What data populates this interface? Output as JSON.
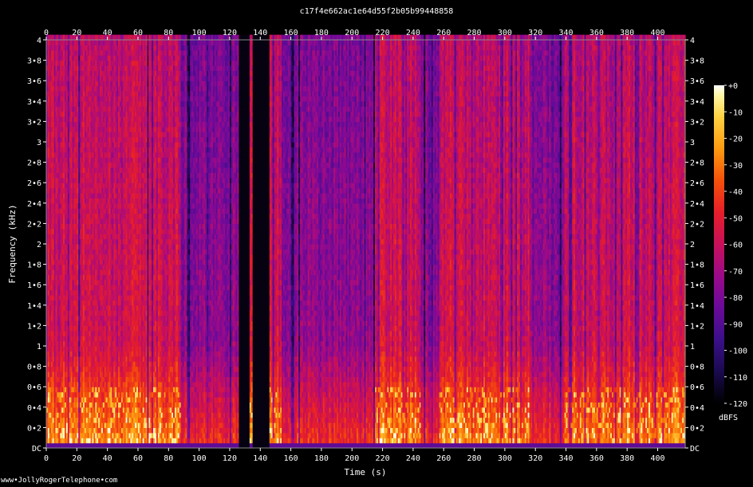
{
  "title": "c17f4e662ac1e64d55f2b05b99448858",
  "footer": "www•JollyRogerTelephone•com",
  "chart_data": {
    "type": "heatmap",
    "subtype": "spectrogram",
    "xlabel": "Time (s)",
    "ylabel": "Frequency (kHz)",
    "xlim": [
      0,
      418
    ],
    "ylim": [
      0,
      4
    ],
    "x_ticks": [
      0,
      20,
      40,
      60,
      80,
      100,
      120,
      140,
      160,
      180,
      200,
      220,
      240,
      260,
      280,
      300,
      320,
      340,
      360,
      380,
      400
    ],
    "x_tick_labels": [
      "0",
      "20",
      "40",
      "60",
      "80",
      "100",
      "120",
      "140",
      "160",
      "180",
      "200",
      "220",
      "240",
      "260",
      "280",
      "300",
      "320",
      "340",
      "360",
      "380",
      "400"
    ],
    "y_ticks": [
      0,
      0.2,
      0.4,
      0.6,
      0.8,
      1,
      1.2,
      1.4,
      1.6,
      1.8,
      2,
      2.2,
      2.4,
      2.6,
      2.8,
      3,
      3.2,
      3.4,
      3.6,
      3.8,
      4
    ],
    "y_tick_labels": [
      "DC",
      "0•2",
      "0•4",
      "0•6",
      "0•8",
      "1",
      "1•2",
      "1•4",
      "1•6",
      "1•8",
      "2",
      "2•2",
      "2•4",
      "2•6",
      "2•8",
      "3",
      "3•2",
      "3•4",
      "3•6",
      "3•8",
      "4"
    ],
    "colorbar": {
      "label": "dBFS",
      "range": [
        -120,
        0
      ],
      "tick_labels": [
        "+0",
        "-10",
        "-20",
        "-30",
        "-40",
        "-50",
        "-60",
        "-70",
        "-80",
        "-90",
        "-100",
        "-110",
        "-120"
      ],
      "colormap": [
        "#000000",
        "#1a0a4f",
        "#3b0f8a",
        "#6a0a9a",
        "#9a0a8a",
        "#c8105a",
        "#e61e2a",
        "#f5500a",
        "#fd9a10",
        "#ffd040",
        "#fff8a8",
        "#ffffff"
      ]
    },
    "silent_segments": [
      [
        126,
        132
      ],
      [
        135,
        145
      ]
    ],
    "quiet_segments": [
      [
        88,
        126
      ],
      [
        154,
        214
      ],
      [
        245,
        256
      ],
      [
        316,
        338
      ]
    ]
  }
}
